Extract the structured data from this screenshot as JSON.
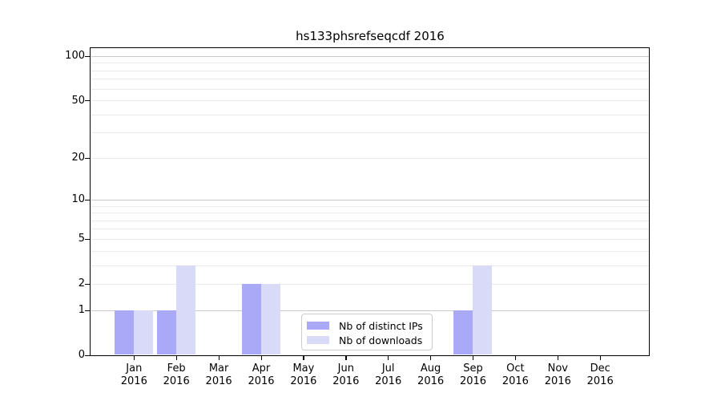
{
  "figure": {
    "title": "hs133phsrefseqcdf 2016"
  },
  "colors": {
    "ips_bar": "#a9a9f8",
    "downloads_bar": "#d9d9f8",
    "grid_major": "#c9c9c9",
    "grid_minor": "#eaeaea",
    "spine": "#000000",
    "text": "#000000",
    "legend_border": "#cccccc",
    "background": "#ffffff"
  },
  "legend": {
    "position": "lower center"
  },
  "chart_data": {
    "type": "bar",
    "title": "hs133phsrefseqcdf 2016",
    "categories": [
      "Jan 2016",
      "Feb 2016",
      "Mar 2016",
      "Apr 2016",
      "May 2016",
      "Jun 2016",
      "Jul 2016",
      "Aug 2016",
      "Sep 2016",
      "Oct 2016",
      "Nov 2016",
      "Dec 2016"
    ],
    "series": [
      {
        "name": "Nb of distinct IPs",
        "color": "#a9a9f8",
        "values": [
          1,
          1,
          0,
          2,
          0,
          0,
          0,
          0,
          1,
          0,
          0,
          0
        ]
      },
      {
        "name": "Nb of downloads",
        "color": "#d9d9f8",
        "values": [
          1,
          3,
          0,
          2,
          0,
          0,
          0,
          0,
          3,
          0,
          0,
          0
        ]
      }
    ],
    "yscale": "log1p",
    "ylim": [
      0,
      114
    ],
    "yticks": {
      "labels": [
        "0",
        "1",
        "2",
        "5",
        "10",
        "20",
        "50",
        "100"
      ],
      "values": [
        0,
        1,
        2,
        5,
        10,
        20,
        50,
        100
      ]
    },
    "major_grid_values": [
      1,
      10,
      100
    ],
    "minor_grid_values": [
      2,
      3,
      4,
      5,
      6,
      7,
      8,
      9,
      20,
      30,
      40,
      50,
      60,
      70,
      80,
      90
    ],
    "grid": true,
    "xlabel": "",
    "ylabel": ""
  }
}
